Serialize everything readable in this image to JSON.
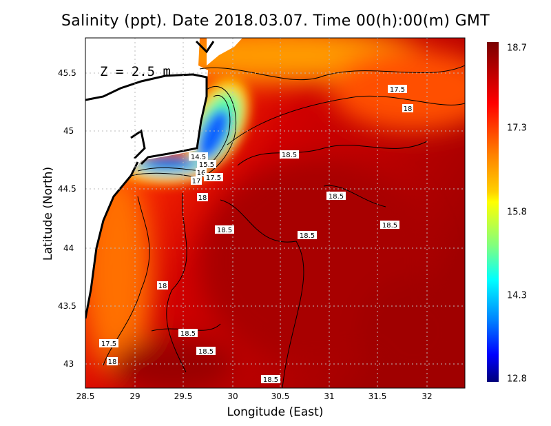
{
  "title": "Salinity (ppt). Date 2018.03.07. Time 00(h):00(m) GMT",
  "depth_label": "Z = 2.5 m",
  "xlabel": "Longitude (East)",
  "ylabel": "Latitude (North)",
  "x_ticks": [
    "28.5",
    "29",
    "29.5",
    "30",
    "30.5",
    "31",
    "31.5",
    "32"
  ],
  "y_ticks": [
    "45.5",
    "45",
    "44.5",
    "44",
    "43.5",
    "43"
  ],
  "colorbar": {
    "ticks": [
      "18.7",
      "17.3",
      "15.8",
      "14.3",
      "12.8"
    ],
    "min": 12.8,
    "max": 18.7
  },
  "contour_labels": [
    "17.5",
    "18",
    "18.5",
    "14.5",
    "15.5",
    "16",
    "17",
    "17.5",
    "18",
    "18.5",
    "18.5",
    "18.5",
    "18.5",
    "18",
    "18.5",
    "17.5",
    "18.5",
    "18",
    "18.5"
  ],
  "chart_data": {
    "type": "heatmap",
    "title": "Salinity (ppt). Date 2018.03.07. Time 00(h):00(m) GMT",
    "xlabel": "Longitude (East)",
    "ylabel": "Latitude (North)",
    "xlim": [
      28.5,
      32.4
    ],
    "ylim": [
      42.8,
      45.8
    ],
    "color_range": [
      12.8,
      18.7
    ],
    "grid": true,
    "annotation": "Z = 2.5 m"
  }
}
